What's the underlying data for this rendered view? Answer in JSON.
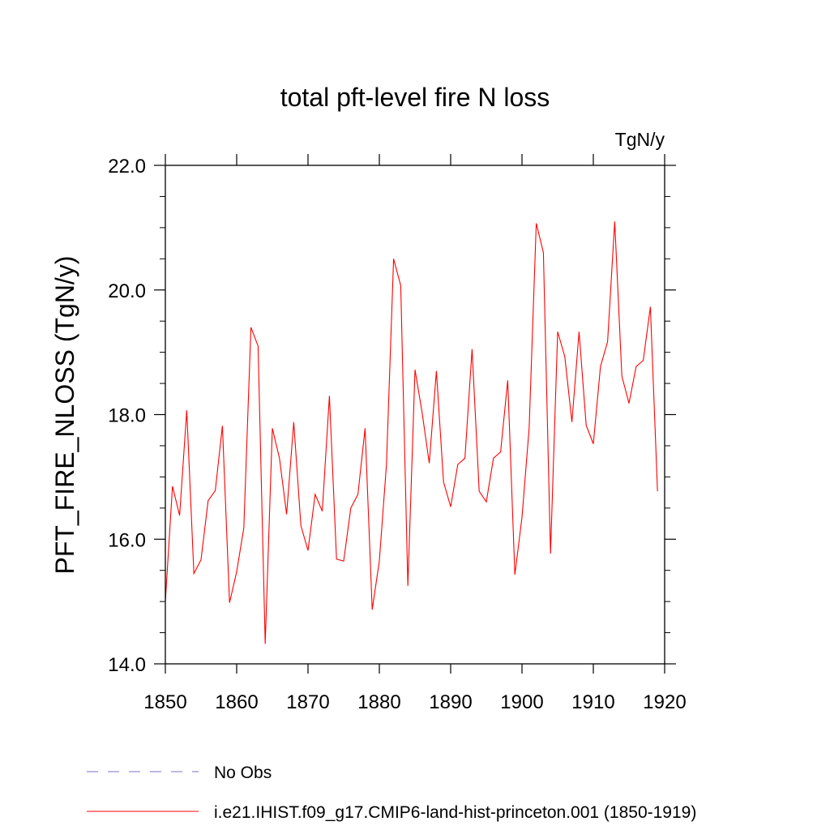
{
  "chart_data": {
    "type": "line",
    "title": "total pft-level fire N loss",
    "units_label": "TgN/y",
    "ylabel": "PFT_FIRE_NLOSS  (TgN/y)",
    "xlabel": "",
    "xlim": [
      1850,
      1920
    ],
    "ylim": [
      14.0,
      22.0
    ],
    "x_ticks": [
      1850,
      1860,
      1870,
      1880,
      1890,
      1900,
      1910,
      1920
    ],
    "x_tick_labels": [
      "1850",
      "1860",
      "1870",
      "1880",
      "1890",
      "1900",
      "1910",
      "1920"
    ],
    "y_ticks": [
      14.0,
      16.0,
      18.0,
      20.0,
      22.0
    ],
    "y_tick_labels": [
      "14.0",
      "16.0",
      "18.0",
      "20.0",
      "22.0"
    ],
    "grid": false,
    "legend_position": "bottom",
    "legend": [
      {
        "label": "No Obs",
        "style": "dashed",
        "color": "#7b6fd0"
      },
      {
        "label": "i.e21.IHIST.f09_g17.CMIP6-land-hist-princeton.001 (1850-1919)",
        "style": "solid",
        "color": "#ff0000"
      }
    ],
    "series": [
      {
        "name": "i.e21.IHIST.f09_g17.CMIP6-land-hist-princeton.001 (1850-1919)",
        "color": "#ff0000",
        "x": [
          1850,
          1851,
          1852,
          1853,
          1854,
          1855,
          1856,
          1857,
          1858,
          1859,
          1860,
          1861,
          1862,
          1863,
          1864,
          1865,
          1866,
          1867,
          1868,
          1869,
          1870,
          1871,
          1872,
          1873,
          1874,
          1875,
          1876,
          1877,
          1878,
          1879,
          1880,
          1881,
          1882,
          1883,
          1884,
          1885,
          1886,
          1887,
          1888,
          1889,
          1890,
          1891,
          1892,
          1893,
          1894,
          1895,
          1896,
          1897,
          1898,
          1899,
          1900,
          1901,
          1902,
          1903,
          1904,
          1905,
          1906,
          1907,
          1908,
          1909,
          1910,
          1911,
          1912,
          1913,
          1914,
          1915,
          1916,
          1917,
          1918,
          1919
        ],
        "values": [
          15.0,
          16.85,
          16.38,
          18.07,
          15.45,
          15.67,
          16.62,
          16.78,
          17.82,
          14.98,
          15.48,
          16.18,
          19.4,
          19.1,
          14.32,
          17.78,
          17.3,
          16.4,
          17.88,
          16.22,
          15.82,
          16.72,
          16.45,
          18.3,
          15.68,
          15.65,
          16.5,
          16.72,
          17.78,
          14.87,
          15.65,
          17.2,
          20.5,
          20.07,
          15.25,
          18.72,
          18.03,
          17.22,
          18.7,
          16.92,
          16.52,
          17.2,
          17.3,
          19.05,
          16.77,
          16.6,
          17.3,
          17.4,
          18.55,
          15.43,
          16.35,
          17.78,
          21.07,
          20.6,
          15.77,
          19.33,
          18.93,
          17.88,
          19.33,
          17.83,
          17.53,
          18.77,
          19.17,
          21.1,
          18.62,
          18.18,
          18.77,
          18.87,
          19.73,
          16.77
        ]
      }
    ]
  }
}
